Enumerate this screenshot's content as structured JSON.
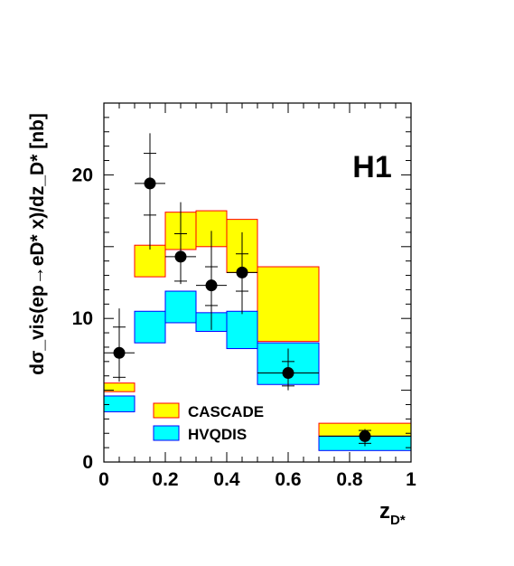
{
  "chart_data": {
    "type": "band",
    "experiment_label": "H1",
    "xlabel": {
      "main": "z",
      "sub": "D*"
    },
    "ylabel": {
      "text": "dσ_vis(ep→eD* x)/dz_D* [nb]"
    },
    "xlim": [
      0,
      1
    ],
    "ylim": [
      0,
      25
    ],
    "x_ticks": [
      0,
      0.2,
      0.4,
      0.6,
      0.8,
      1
    ],
    "x_tick_labels": [
      "0",
      "0.2",
      "0.4",
      "0.6",
      "0.8",
      "1"
    ],
    "y_ticks": [
      0,
      10,
      20
    ],
    "y_tick_labels": [
      "0",
      "10",
      "20"
    ],
    "legend_position": "bottom-left",
    "bins": [
      [
        0,
        0.1
      ],
      [
        0.1,
        0.2
      ],
      [
        0.2,
        0.3
      ],
      [
        0.3,
        0.4
      ],
      [
        0.4,
        0.5
      ],
      [
        0.5,
        0.7
      ],
      [
        0.7,
        1.0
      ]
    ],
    "bands": [
      {
        "name": "CASCADE",
        "fill": "#ffff00",
        "edge": "#ff0000",
        "low": [
          4.9,
          12.9,
          14.8,
          15.0,
          13.2,
          8.4,
          1.8
        ],
        "high": [
          5.5,
          15.1,
          17.4,
          17.5,
          16.9,
          13.6,
          2.7
        ]
      },
      {
        "name": "HVQDIS",
        "fill": "#00ffff",
        "edge": "#0000ff",
        "low": [
          3.5,
          8.3,
          9.7,
          9.1,
          7.9,
          5.4,
          0.8
        ],
        "high": [
          4.6,
          10.5,
          11.9,
          10.4,
          10.5,
          8.3,
          1.8
        ]
      }
    ],
    "points": {
      "name": "Data",
      "x": [
        0.05,
        0.15,
        0.25,
        0.35,
        0.45,
        0.6,
        0.85
      ],
      "x_half_width": [
        0.05,
        0.05,
        0.05,
        0.05,
        0.05,
        0.1,
        0.15
      ],
      "y": [
        7.6,
        19.4,
        14.3,
        12.3,
        13.2,
        6.2,
        1.8
      ],
      "stat_low": [
        5.9,
        17.2,
        12.6,
        10.9,
        11.9,
        5.3,
        1.3
      ],
      "stat_high": [
        9.4,
        21.5,
        15.9,
        13.6,
        14.5,
        7.0,
        2.2
      ],
      "tot_low": [
        5.6,
        14.8,
        12.4,
        9.2,
        10.3,
        5.0,
        1.1
      ],
      "tot_high": [
        10.7,
        22.9,
        18.1,
        16.1,
        16.0,
        7.9,
        2.3
      ]
    }
  }
}
